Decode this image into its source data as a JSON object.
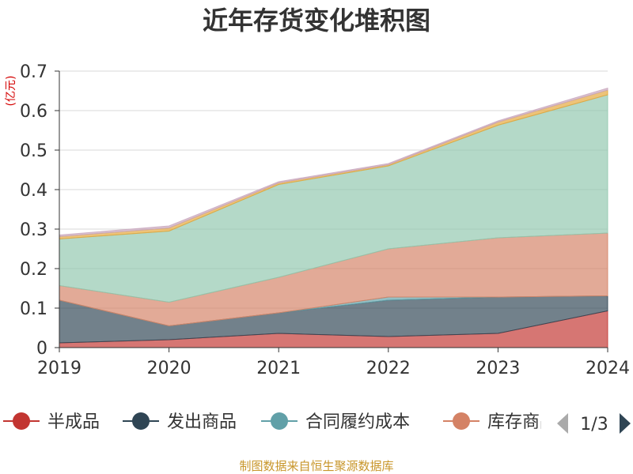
{
  "chart_data": {
    "type": "area",
    "stacked": true,
    "title": "近年存货变化堆积图",
    "ylabel": "(亿元)",
    "x": [
      "2019",
      "2020",
      "2021",
      "2022",
      "2023",
      "2024"
    ],
    "yticks": [
      "0",
      "0.1",
      "0.2",
      "0.3",
      "0.4",
      "0.5",
      "0.6",
      "0.7"
    ],
    "ylim": [
      0,
      0.7
    ],
    "grid": true,
    "legend_position": "bottom",
    "series": [
      {
        "name": "半成品",
        "color": "#c23531",
        "values": [
          0.012,
          0.02,
          0.036,
          0.028,
          0.036,
          0.093
        ]
      },
      {
        "name": "发出商品",
        "color": "#2f4554",
        "values": [
          0.108,
          0.035,
          0.052,
          0.092,
          0.092,
          0.038
        ]
      },
      {
        "name": "合同履约成本",
        "color": "#61a0a8",
        "values": [
          0,
          0,
          0,
          0.008,
          0,
          0
        ]
      },
      {
        "name": "库存商品",
        "color": "#d48265",
        "values": [
          0.037,
          0.06,
          0.09,
          0.122,
          0.15,
          0.159
        ]
      },
      {
        "name": "",
        "color": "#91c7ae",
        "values": [
          0.118,
          0.18,
          0.235,
          0.21,
          0.285,
          0.35
        ]
      },
      {
        "name": "",
        "color": "#e5a73a",
        "values": [
          0.006,
          0.008,
          0.004,
          0.003,
          0.008,
          0.012
        ]
      },
      {
        "name": "",
        "color": "#c9a7bd",
        "values": [
          0.004,
          0.005,
          0.003,
          0.003,
          0.003,
          0.005
        ]
      }
    ],
    "legend_page": "1/3",
    "source": "制图数据来自恒生聚源数据库"
  }
}
